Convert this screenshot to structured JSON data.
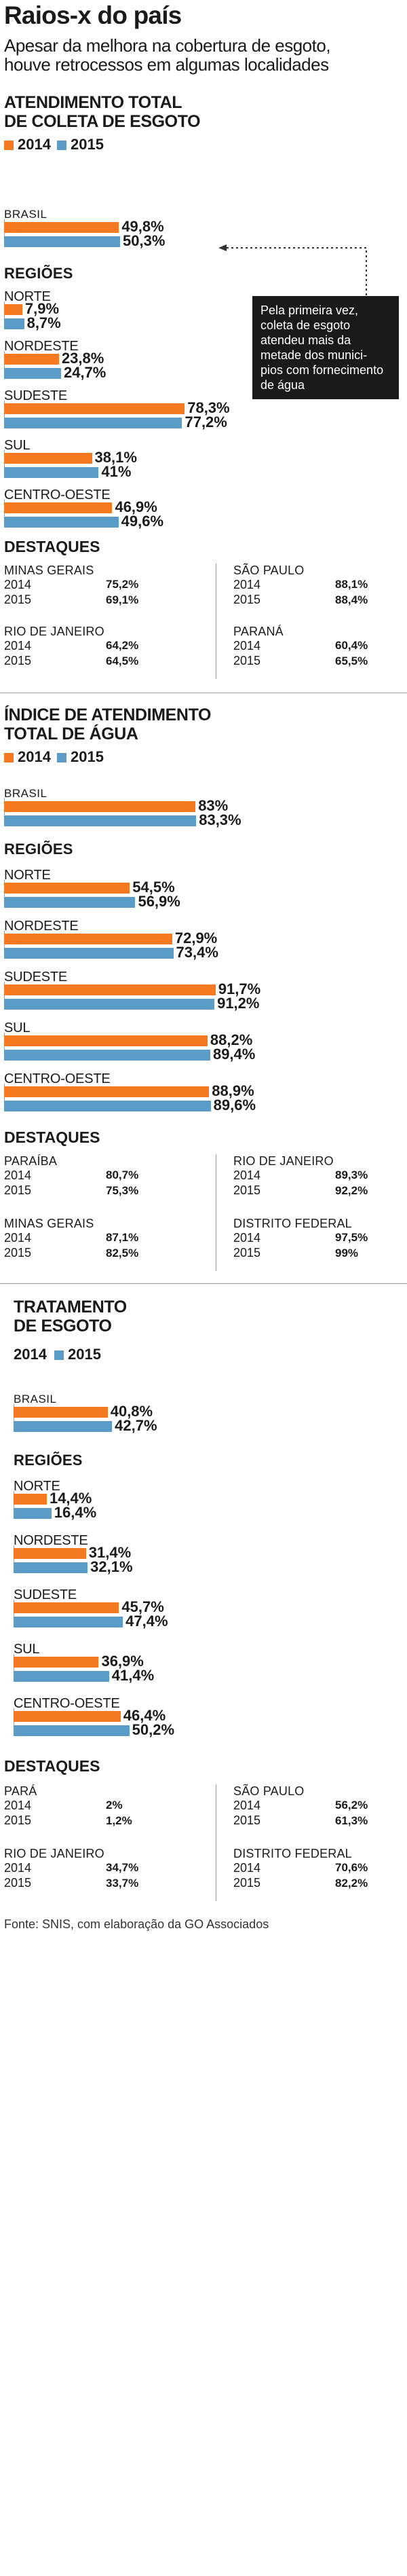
{
  "header": {
    "title": "Raios-x do país",
    "subtitle_lines": [
      "Apesar da melhora na cobertura de esgoto,",
      "houve retrocessos em algumas localidades"
    ]
  },
  "colors": {
    "y2014": "#f47920",
    "y2015": "#5b9bc7",
    "note_bg": "#1a1a1a"
  },
  "legend": {
    "y2014": "2014",
    "y2015": "2015"
  },
  "regioes_label": "REGIÕES",
  "destaques_label": "DESTAQUES",
  "note": {
    "lines": [
      "Pela primeira vez,",
      "coleta de esgoto",
      "atendeu mais da",
      "metade dos munici-",
      "pios com fornecimento",
      "de água"
    ]
  },
  "source": "Fonte: SNIS, com elaboração da GO Associados",
  "chart_data": [
    {
      "type": "bar",
      "title_lines": [
        "ATENDIMENTO TOTAL",
        "DE COLETA DE ESGOTO"
      ],
      "unit": "%",
      "xlim": [
        0,
        100
      ],
      "series": [
        {
          "name": "2014",
          "color": "#f47920"
        },
        {
          "name": "2015",
          "color": "#5b9bc7"
        }
      ],
      "brasil": {
        "label": "BRASIL",
        "v2014": 49.8,
        "v2015": 50.3,
        "t2014": "49,8%",
        "t2015": "50,3%"
      },
      "regions": [
        {
          "label": "NORTE",
          "v2014": 7.9,
          "v2015": 8.7,
          "t2014": "7,9%",
          "t2015": "8,7%"
        },
        {
          "label": "NORDESTE",
          "v2014": 23.8,
          "v2015": 24.7,
          "t2014": "23,8%",
          "t2015": "24,7%"
        },
        {
          "label": "SUDESTE",
          "v2014": 78.3,
          "v2015": 77.2,
          "t2014": "78,3%",
          "t2015": "77,2%"
        },
        {
          "label": "SUL",
          "v2014": 38.1,
          "v2015": 41,
          "t2014": "38,1%",
          "t2015": "41%"
        },
        {
          "label": "CENTRO-OESTE",
          "v2014": 46.9,
          "v2015": 49.6,
          "t2014": "46,9%",
          "t2015": "49,6%"
        }
      ],
      "destaques": [
        {
          "name": "MINAS GERAIS",
          "t2014": "75,2%",
          "t2015": "69,1%"
        },
        {
          "name": "SÃO PAULO",
          "t2014": "88,1%",
          "t2015": "88,4%"
        },
        {
          "name": "RIO DE JANEIRO",
          "t2014": "64,2%",
          "t2015": "64,5%"
        },
        {
          "name": "PARANÁ",
          "t2014": "60,4%",
          "t2015": "65,5%"
        }
      ]
    },
    {
      "type": "bar",
      "title_lines": [
        "ÍNDICE DE ATENDIMENTO",
        "TOTAL DE ÁGUA"
      ],
      "unit": "%",
      "xlim": [
        0,
        100
      ],
      "series": [
        {
          "name": "2014",
          "color": "#f47920"
        },
        {
          "name": "2015",
          "color": "#5b9bc7"
        }
      ],
      "brasil": {
        "label": "BRASIL",
        "v2014": 83,
        "v2015": 83.3,
        "t2014": "83%",
        "t2015": "83,3%"
      },
      "regions": [
        {
          "label": "NORTE",
          "v2014": 54.5,
          "v2015": 56.9,
          "t2014": "54,5%",
          "t2015": "56,9%"
        },
        {
          "label": "NORDESTE",
          "v2014": 72.9,
          "v2015": 73.4,
          "t2014": "72,9%",
          "t2015": "73,4%"
        },
        {
          "label": "SUDESTE",
          "v2014": 91.7,
          "v2015": 91.2,
          "t2014": "91,7%",
          "t2015": "91,2%"
        },
        {
          "label": "SUL",
          "v2014": 88.2,
          "v2015": 89.4,
          "t2014": "88,2%",
          "t2015": "89,4%"
        },
        {
          "label": "CENTRO-OESTE",
          "v2014": 88.9,
          "v2015": 89.6,
          "t2014": "88,9%",
          "t2015": "89,6%"
        }
      ],
      "destaques": [
        {
          "name": "PARAÍBA",
          "t2014": "80,7%",
          "t2015": "75,3%"
        },
        {
          "name": "RIO DE JANEIRO",
          "t2014": "89,3%",
          "t2015": "92,2%"
        },
        {
          "name": "MINAS GERAIS",
          "t2014": "87,1%",
          "t2015": "82,5%"
        },
        {
          "name": "DISTRITO FEDERAL",
          "t2014": "97,5%",
          "t2015": "99%"
        }
      ]
    },
    {
      "type": "bar",
      "title_lines": [
        "TRATAMENTO",
        "DE ESGOTO"
      ],
      "unit": "%",
      "xlim": [
        0,
        100
      ],
      "series": [
        {
          "name": "2014",
          "color": "#f47920"
        },
        {
          "name": "2015",
          "color": "#5b9bc7"
        }
      ],
      "brasil": {
        "label": "BRASIL",
        "v2014": 40.8,
        "v2015": 42.7,
        "t2014": "40,8%",
        "t2015": "42,7%"
      },
      "regions": [
        {
          "label": "NORTE",
          "v2014": 14.4,
          "v2015": 16.4,
          "t2014": "14,4%",
          "t2015": "16,4%"
        },
        {
          "label": "NORDESTE",
          "v2014": 31.4,
          "v2015": 32.1,
          "t2014": "31,4%",
          "t2015": "32,1%"
        },
        {
          "label": "SUDESTE",
          "v2014": 45.7,
          "v2015": 47.4,
          "t2014": "45,7%",
          "t2015": "47,4%"
        },
        {
          "label": "SUL",
          "v2014": 36.9,
          "v2015": 41.4,
          "t2014": "36,9%",
          "t2015": "41,4%"
        },
        {
          "label": "CENTRO-OESTE",
          "v2014": 46.4,
          "v2015": 50.2,
          "t2014": "46,4%",
          "t2015": "50,2%"
        }
      ],
      "destaques": [
        {
          "name": "PARÁ",
          "t2014": "2%",
          "t2015": "1,2%"
        },
        {
          "name": "SÃO PAULO",
          "t2014": "56,2%",
          "t2015": "61,3%"
        },
        {
          "name": "RIO DE JANEIRO",
          "t2014": "34,7%",
          "t2015": "33,7%"
        },
        {
          "name": "DISTRITO FEDERAL",
          "t2014": "70,6%",
          "t2015": "82,2%"
        }
      ]
    }
  ]
}
